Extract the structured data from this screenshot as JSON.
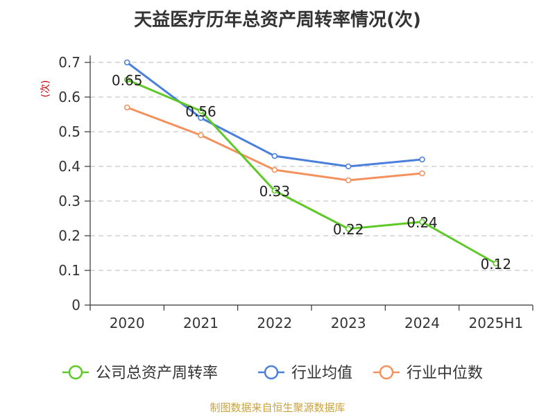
{
  "chart_data": {
    "type": "line",
    "title": "天益医疗历年总资产周转率情况(次)",
    "ylabel": "(次)",
    "categories": [
      "2020",
      "2021",
      "2022",
      "2023",
      "2024",
      "2025H1"
    ],
    "yticks": [
      "0",
      "0.1",
      "0.2",
      "0.3",
      "0.4",
      "0.5",
      "0.6",
      "0.7"
    ],
    "ylim": [
      0,
      0.7
    ],
    "grid": true,
    "legend_position": "bottom",
    "series": [
      {
        "name": "公司总资产周转率",
        "color": "#5ec926",
        "values": [
          0.65,
          0.56,
          0.33,
          0.22,
          0.24,
          0.12
        ],
        "labels": [
          "0.65",
          "0.56",
          "0.33",
          "0.22",
          "0.24",
          "0.12"
        ]
      },
      {
        "name": "行业均值",
        "color": "#4a7fdc",
        "values": [
          0.7,
          0.54,
          0.43,
          0.4,
          0.42,
          null
        ]
      },
      {
        "name": "行业中位数",
        "color": "#f4915c",
        "values": [
          0.57,
          0.49,
          0.39,
          0.36,
          0.38,
          null
        ]
      }
    ]
  },
  "footer": {
    "source": "制图数据来自恒生聚源数据库"
  }
}
